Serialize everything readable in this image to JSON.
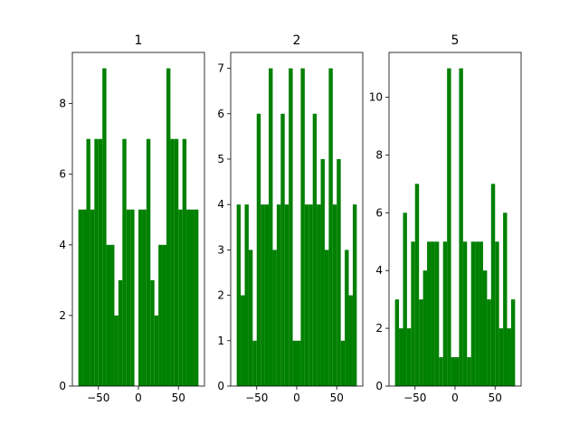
{
  "chart_data": [
    {
      "type": "histogram",
      "title": "1",
      "color": "#008000",
      "bins": [
        -75,
        -70,
        -65,
        -60,
        -55,
        -50,
        -45,
        -40,
        -35,
        -30,
        -25,
        -20,
        -15,
        -10,
        -5,
        0,
        5,
        10,
        15,
        20,
        25,
        30,
        35,
        40,
        45,
        50,
        55,
        60,
        65,
        70,
        75
      ],
      "values": [
        5,
        5,
        7,
        5,
        7,
        7,
        9,
        4,
        4,
        2,
        3,
        7,
        5,
        5,
        0,
        5,
        5,
        7,
        3,
        2,
        4,
        4,
        9,
        7,
        7,
        5,
        7,
        5,
        5,
        5
      ],
      "xlim": [
        -82.5,
        82.5
      ],
      "xticks": [
        {
          "value": -50,
          "label": "−50"
        },
        0,
        50
      ],
      "ylim": [
        0,
        9.45
      ],
      "yticks": [
        0,
        2,
        4,
        6,
        8
      ]
    },
    {
      "type": "histogram",
      "title": "2",
      "color": "#008000",
      "bins": [
        -75,
        -70,
        -65,
        -60,
        -55,
        -50,
        -45,
        -40,
        -35,
        -30,
        -25,
        -20,
        -15,
        -10,
        -5,
        0,
        5,
        10,
        15,
        20,
        25,
        30,
        35,
        40,
        45,
        50,
        55,
        60,
        65,
        70,
        75
      ],
      "values": [
        4,
        2,
        4,
        3,
        1,
        6,
        4,
        4,
        7,
        3,
        4,
        6,
        4,
        7,
        1,
        1,
        7,
        4,
        4,
        6,
        4,
        5,
        3,
        7,
        4,
        5,
        1,
        3,
        2,
        4
      ],
      "xlim": [
        -82.5,
        82.5
      ],
      "xticks": [
        {
          "value": -50,
          "label": "−50"
        },
        0,
        50
      ],
      "ylim": [
        0,
        7.35
      ],
      "yticks": [
        0,
        1,
        2,
        3,
        4,
        5,
        6,
        7
      ]
    },
    {
      "type": "histogram",
      "title": "5",
      "color": "#008000",
      "bins": [
        -75,
        -70,
        -65,
        -60,
        -55,
        -50,
        -45,
        -40,
        -35,
        -30,
        -25,
        -20,
        -15,
        -10,
        -5,
        0,
        5,
        10,
        15,
        20,
        25,
        30,
        35,
        40,
        45,
        50,
        55,
        60,
        65,
        70,
        75
      ],
      "values": [
        3,
        2,
        6,
        2,
        5,
        7,
        3,
        4,
        5,
        5,
        5,
        1,
        5,
        11,
        1,
        1,
        11,
        5,
        1,
        5,
        5,
        5,
        4,
        3,
        7,
        5,
        2,
        6,
        2,
        3
      ],
      "xlim": [
        -82.5,
        82.5
      ],
      "xticks": [
        {
          "value": -50,
          "label": "−50"
        },
        0,
        50
      ],
      "ylim": [
        0,
        11.55
      ],
      "yticks": [
        0,
        2,
        4,
        6,
        8,
        10
      ]
    }
  ]
}
